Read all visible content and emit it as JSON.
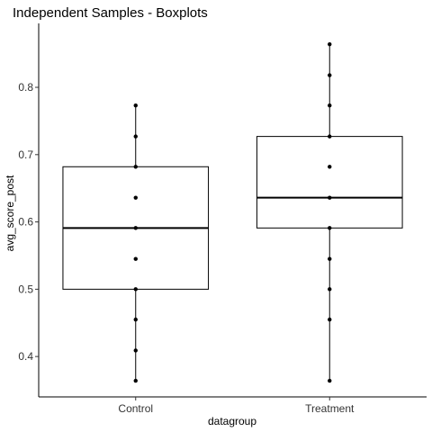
{
  "chart_data": {
    "type": "boxplot",
    "title": "Independent Samples - Boxplots",
    "xlabel": "datagroup",
    "ylabel": "avg_score_post",
    "categories": [
      "Control",
      "Treatment"
    ],
    "ylim": [
      0.34,
      0.895
    ],
    "yticks": [
      0.4,
      0.5,
      0.6,
      0.7,
      0.8
    ],
    "grid": false,
    "boxes": [
      {
        "name": "Control",
        "q1": 0.5,
        "median": 0.591,
        "q3": 0.682,
        "whisker_low": 0.364,
        "whisker_high": 0.773
      },
      {
        "name": "Treatment",
        "q1": 0.591,
        "median": 0.636,
        "q3": 0.727,
        "whisker_low": 0.364,
        "whisker_high": 0.864
      }
    ],
    "points": [
      {
        "category": "Control",
        "values": [
          0.364,
          0.409,
          0.455,
          0.5,
          0.545,
          0.591,
          0.636,
          0.682,
          0.727,
          0.773
        ]
      },
      {
        "category": "Treatment",
        "values": [
          0.364,
          0.455,
          0.5,
          0.545,
          0.591,
          0.636,
          0.682,
          0.727,
          0.773,
          0.818,
          0.864
        ]
      }
    ]
  }
}
